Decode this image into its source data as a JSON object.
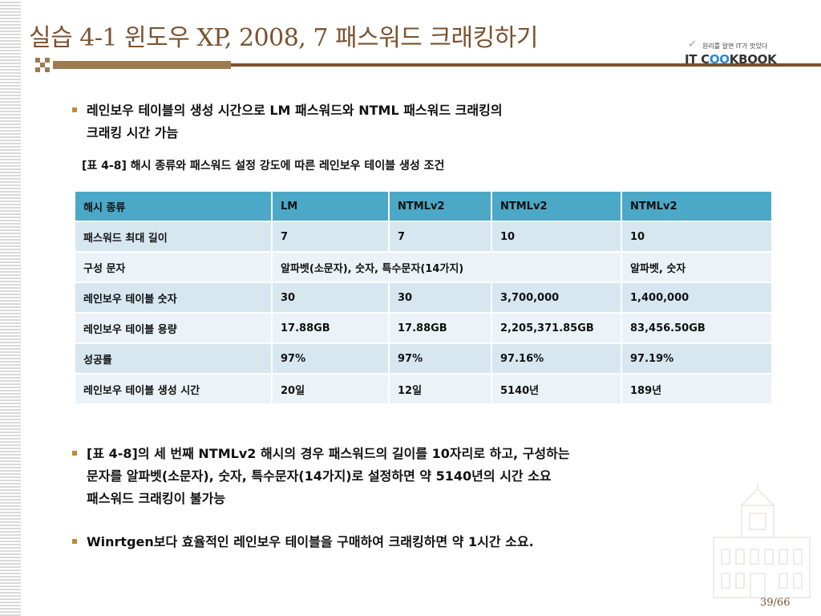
{
  "title": "실습 4-1 윈도우 XP, 2008, 7 패스워드 크래킹하기",
  "logo": {
    "tagline": "원리를 알면 IT가 맛있다",
    "text_prefix": "IT C",
    "text_oo": "OO",
    "text_suffix": "KBOOK"
  },
  "bullets_top": [
    {
      "line1": "레인보우 테이블의 생성 시간으로 LM 패스워드와 NTML 패스워드 크래킹의",
      "line2": "크래킹 시간 가늠"
    }
  ],
  "caption": "[표 4-8] 해시 종류와 패스워드 설정 강도에 따른 레인보우 테이블 생성 조건",
  "table": {
    "header": [
      "해시 종류",
      "LM",
      "NTMLv2",
      "NTMLv2",
      "NTMLv2"
    ],
    "rows": [
      [
        "패스워드 최대 길이",
        "7",
        "7",
        "10",
        "10"
      ],
      [
        "구성 문자",
        "알파벳(소문자), 숫자, 특수문자(14가지)",
        "알파벳, 숫자"
      ],
      [
        "레인보우 테이블 숫자",
        "30",
        "30",
        "3,700,000",
        "1,400,000"
      ],
      [
        "레인보우 테이블 용량",
        "17.88GB",
        "17.88GB",
        "2,205,371.85GB",
        "83,456.50GB"
      ],
      [
        "성공률",
        "97%",
        "97%",
        "97.16%",
        "97.19%"
      ],
      [
        "레인보우 테이블 생성 시간",
        "20일",
        "12일",
        "5140년",
        "189년"
      ]
    ]
  },
  "bullets_bottom": [
    {
      "line1": "[표 4-8]의 세 번째 NTMLv2 해시의 경우 패스워드의 길이를 10자리로 하고, 구성하는",
      "line2": "문자를 알파벳(소문자), 숫자, 특수문자(14가지)로 설정하면 약 5140년의 시간 소요",
      "line3": "패스워드 크래킹이 불가능"
    },
    {
      "line1": "Winrtgen보다 효율적인 레인보우 테이블을 구매하여 크래킹하면 약 1시간 소요."
    }
  ],
  "page_number": "39/66",
  "colors": {
    "title": "#7a5230",
    "bullet": "#c08a3a",
    "table_header": "#4ba8c6",
    "table_row_dark": "#d6e7f0",
    "table_row_light": "#ebf3f8",
    "logo_accent": "#2a8ad0"
  }
}
